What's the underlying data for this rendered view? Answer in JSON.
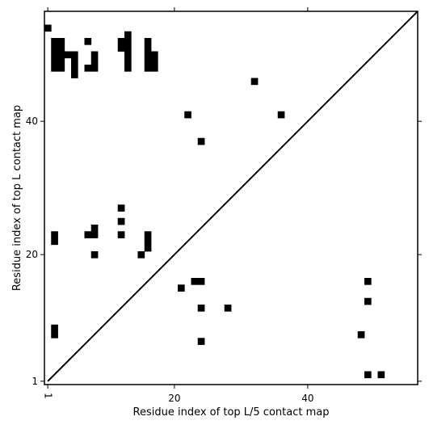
{
  "chart_data": {
    "type": "heatmap",
    "xlabel": "Residue index of top L/5 contact map",
    "ylabel": "Residue index of top L contact map",
    "xlim": [
      0.5,
      56.5
    ],
    "ylim": [
      0.5,
      56.5
    ],
    "xticks": [
      "1",
      "20",
      "40"
    ],
    "xtick_values": [
      1,
      20,
      40
    ],
    "yticks": [
      "1",
      "20",
      "40"
    ],
    "ytick_values": [
      1,
      20,
      40
    ],
    "diagonal": true,
    "colors": {
      "contact": "#000000",
      "background": "#ffffff",
      "line": "#000000"
    },
    "upper_triangle_cells": [
      [
        1,
        54
      ],
      [
        2,
        52
      ],
      [
        3,
        52
      ],
      [
        7,
        52
      ],
      [
        12,
        52
      ],
      [
        13,
        52
      ],
      [
        16,
        52
      ],
      [
        13,
        53
      ],
      [
        2,
        51
      ],
      [
        3,
        51
      ],
      [
        12,
        51
      ],
      [
        13,
        51
      ],
      [
        16,
        51
      ],
      [
        2,
        50
      ],
      [
        3,
        50
      ],
      [
        4,
        50
      ],
      [
        5,
        50
      ],
      [
        8,
        50
      ],
      [
        13,
        50
      ],
      [
        16,
        50
      ],
      [
        17,
        50
      ],
      [
        2,
        49
      ],
      [
        3,
        49
      ],
      [
        5,
        49
      ],
      [
        8,
        49
      ],
      [
        13,
        49
      ],
      [
        16,
        49
      ],
      [
        17,
        49
      ],
      [
        2,
        48
      ],
      [
        3,
        48
      ],
      [
        5,
        48
      ],
      [
        7,
        48
      ],
      [
        8,
        48
      ],
      [
        13,
        48
      ],
      [
        16,
        48
      ],
      [
        17,
        48
      ],
      [
        5,
        47
      ],
      [
        32,
        46
      ],
      [
        22,
        41
      ],
      [
        36,
        41
      ],
      [
        24,
        37
      ]
    ],
    "lower_triangle_cells": [
      [
        12,
        27
      ],
      [
        12,
        25
      ],
      [
        2,
        23
      ],
      [
        7,
        23
      ],
      [
        8,
        23
      ],
      [
        12,
        23
      ],
      [
        16,
        23
      ],
      [
        8,
        24
      ],
      [
        2,
        22
      ],
      [
        16,
        22
      ],
      [
        16,
        21
      ],
      [
        8,
        20
      ],
      [
        15,
        20
      ],
      [
        23,
        16
      ],
      [
        24,
        16
      ],
      [
        49,
        16
      ],
      [
        21,
        15
      ],
      [
        49,
        13
      ],
      [
        24,
        12
      ],
      [
        28,
        12
      ],
      [
        2,
        9
      ],
      [
        2,
        8
      ],
      [
        48,
        8
      ],
      [
        24,
        7
      ],
      [
        49,
        2
      ],
      [
        51,
        2
      ]
    ]
  }
}
